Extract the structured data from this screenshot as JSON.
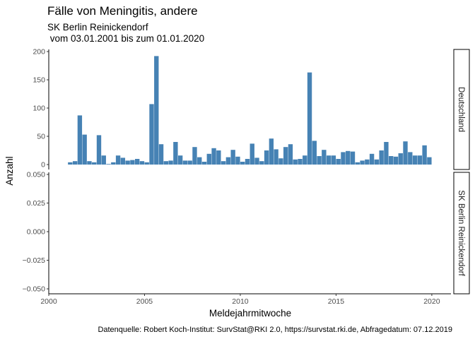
{
  "chart_data": {
    "type": "bar",
    "title": "Fälle von Meningitis, andere",
    "subtitle_lines": [
      "SK Berlin Reinickendorf",
      " vom 03.01.2001 bis zum 01.01.2020"
    ],
    "xlabel": "Meldejahrmitwoche",
    "ylabel": "Anzahl",
    "caption": "Datenquelle: Robert Koch-Institut: SurvStat@RKI 2.0, https://survstat.rki.de, Abfragedatum: 07.12.2019",
    "color": "#4682b4",
    "xlim": [
      2000,
      2021
    ],
    "x_ticks": [
      2000,
      2005,
      2010,
      2015,
      2020
    ],
    "x_tick_labels": [
      "2000",
      "2005",
      "2010",
      "2015",
      "2020"
    ],
    "bar_width": 0.235,
    "panels": [
      {
        "strip": "Deutschland",
        "ylim": [
          0,
          200
        ],
        "y_ticks": [
          0,
          50,
          100,
          150,
          200
        ],
        "y_tick_labels": [
          "0",
          "50",
          "100",
          "150",
          "200"
        ],
        "x": [
          2001.12,
          2001.37,
          2001.62,
          2001.87,
          2002.12,
          2002.37,
          2002.62,
          2002.87,
          2003.12,
          2003.37,
          2003.62,
          2003.87,
          2004.12,
          2004.37,
          2004.62,
          2004.87,
          2005.12,
          2005.37,
          2005.62,
          2005.87,
          2006.12,
          2006.37,
          2006.62,
          2006.87,
          2007.12,
          2007.37,
          2007.62,
          2007.87,
          2008.12,
          2008.37,
          2008.62,
          2008.87,
          2009.12,
          2009.37,
          2009.62,
          2009.87,
          2010.12,
          2010.37,
          2010.62,
          2010.87,
          2011.12,
          2011.37,
          2011.62,
          2011.87,
          2012.12,
          2012.37,
          2012.62,
          2012.87,
          2013.12,
          2013.37,
          2013.62,
          2013.87,
          2014.12,
          2014.37,
          2014.62,
          2014.87,
          2015.12,
          2015.37,
          2015.62,
          2015.87,
          2016.12,
          2016.37,
          2016.62,
          2016.87,
          2017.12,
          2017.37,
          2017.62,
          2017.87,
          2018.12,
          2018.37,
          2018.62,
          2018.87,
          2019.12,
          2019.37,
          2019.62,
          2019.87
        ],
        "values": [
          4,
          6,
          87,
          53,
          6,
          4,
          52,
          16,
          1,
          4,
          16,
          12,
          7,
          8,
          10,
          6,
          4,
          107,
          192,
          36,
          6,
          7,
          40,
          16,
          7,
          7,
          31,
          13,
          5,
          19,
          29,
          25,
          6,
          13,
          26,
          14,
          5,
          10,
          37,
          12,
          6,
          25,
          46,
          27,
          11,
          31,
          36,
          9,
          10,
          16,
          163,
          42,
          15,
          26,
          16,
          16,
          10,
          22,
          24,
          23,
          4,
          7,
          9,
          19,
          9,
          25,
          40,
          15,
          14,
          20,
          41,
          22,
          16,
          16,
          34,
          13
        ]
      },
      {
        "strip": "SK Berlin Reinickendorf",
        "ylim": [
          -0.05,
          0.05
        ],
        "y_ticks": [
          -0.05,
          -0.025,
          0,
          0.025,
          0.05
        ],
        "y_tick_labels": [
          "−0.050",
          "−0.025",
          "0.000",
          "0.025",
          "0.050"
        ],
        "x": [],
        "values": []
      }
    ]
  }
}
